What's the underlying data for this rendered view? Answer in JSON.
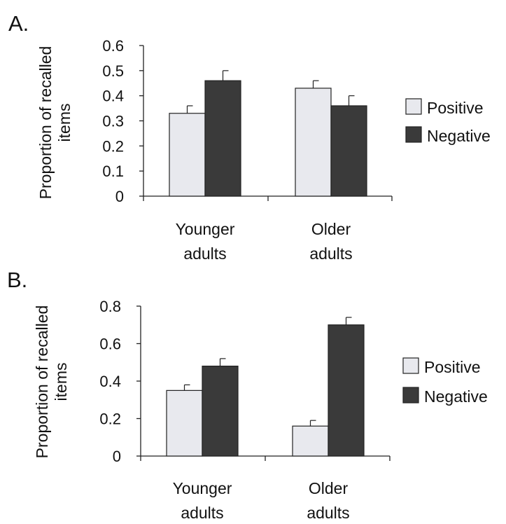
{
  "colors": {
    "positive": "#e8e9ee",
    "negative": "#3a3a3a"
  },
  "chart_data": [
    {
      "panel": "A.",
      "type": "bar",
      "categories": [
        [
          "Younger",
          "adults"
        ],
        [
          "Older",
          "adults"
        ]
      ],
      "ylabel": [
        "Proportion of recalled",
        "items"
      ],
      "ylim": [
        0,
        0.6
      ],
      "yticks": [
        "0",
        "0.1",
        "0.2",
        "0.3",
        "0.4",
        "0.5",
        "0.6"
      ],
      "legend_position": "right",
      "series": [
        {
          "name": "Positive",
          "values": [
            0.33,
            0.43
          ],
          "errors": [
            0.03,
            0.03
          ]
        },
        {
          "name": "Negative",
          "values": [
            0.46,
            0.36
          ],
          "errors": [
            0.04,
            0.04
          ]
        }
      ]
    },
    {
      "panel": "B.",
      "type": "bar",
      "categories": [
        [
          "Younger",
          "adults"
        ],
        [
          "Older",
          "adults"
        ]
      ],
      "ylabel": [
        "Proportion of recalled",
        "items"
      ],
      "ylim": [
        0,
        0.8
      ],
      "yticks": [
        "0",
        "0.2",
        "0.4",
        "0.6",
        "0.8"
      ],
      "legend_position": "right",
      "series": [
        {
          "name": "Positive",
          "values": [
            0.35,
            0.16
          ],
          "errors": [
            0.03,
            0.03
          ]
        },
        {
          "name": "Negative",
          "values": [
            0.48,
            0.7
          ],
          "errors": [
            0.04,
            0.04
          ]
        }
      ]
    }
  ]
}
